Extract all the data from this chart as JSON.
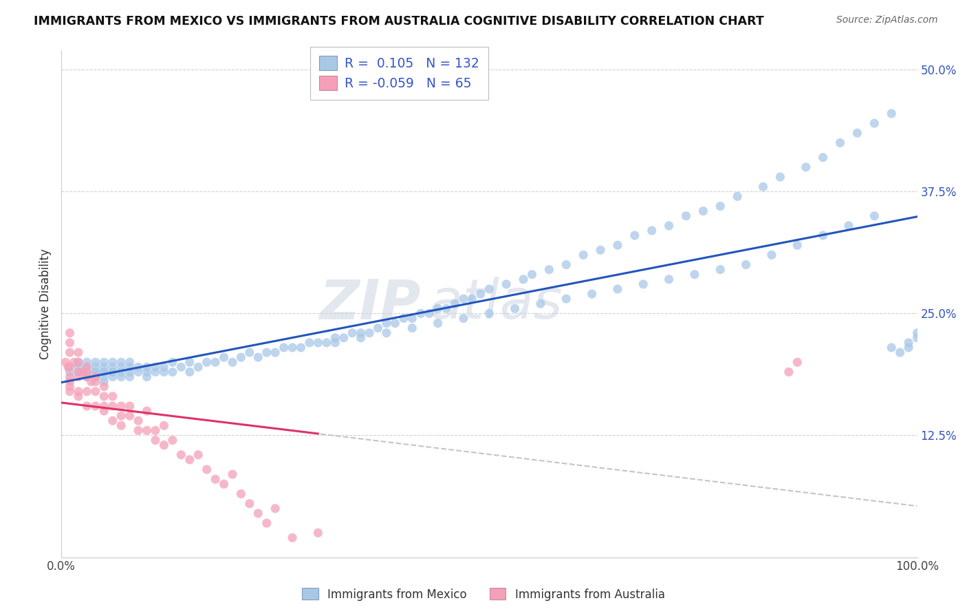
{
  "title": "IMMIGRANTS FROM MEXICO VS IMMIGRANTS FROM AUSTRALIA COGNITIVE DISABILITY CORRELATION CHART",
  "source": "Source: ZipAtlas.com",
  "ylabel": "Cognitive Disability",
  "xlim": [
    0.0,
    1.0
  ],
  "ylim": [
    0.0,
    0.52
  ],
  "mexico_R": 0.105,
  "mexico_N": 132,
  "australia_R": -0.059,
  "australia_N": 65,
  "blue_color": "#a8c8e8",
  "pink_color": "#f4a0b8",
  "blue_line_color": "#2255bb",
  "pink_line_color": "#dd3366",
  "dashed_line_color": "#c8c0d0",
  "legend_label_mexico": "Immigrants from Mexico",
  "legend_label_australia": "Immigrants from Australia",
  "watermark_zip": "ZIP",
  "watermark_atlas": "atlas",
  "mexico_x": [
    0.01,
    0.02,
    0.02,
    0.02,
    0.03,
    0.03,
    0.03,
    0.03,
    0.04,
    0.04,
    0.04,
    0.04,
    0.04,
    0.05,
    0.05,
    0.05,
    0.05,
    0.05,
    0.05,
    0.06,
    0.06,
    0.06,
    0.06,
    0.06,
    0.07,
    0.07,
    0.07,
    0.07,
    0.08,
    0.08,
    0.08,
    0.08,
    0.09,
    0.09,
    0.1,
    0.1,
    0.1,
    0.11,
    0.11,
    0.12,
    0.12,
    0.13,
    0.13,
    0.14,
    0.15,
    0.15,
    0.16,
    0.17,
    0.18,
    0.19,
    0.2,
    0.21,
    0.22,
    0.23,
    0.24,
    0.25,
    0.26,
    0.27,
    0.28,
    0.29,
    0.3,
    0.31,
    0.32,
    0.33,
    0.34,
    0.35,
    0.36,
    0.37,
    0.38,
    0.39,
    0.4,
    0.41,
    0.42,
    0.43,
    0.44,
    0.45,
    0.46,
    0.47,
    0.48,
    0.49,
    0.5,
    0.52,
    0.54,
    0.55,
    0.57,
    0.59,
    0.61,
    0.63,
    0.65,
    0.67,
    0.69,
    0.71,
    0.73,
    0.75,
    0.77,
    0.79,
    0.82,
    0.84,
    0.87,
    0.89,
    0.91,
    0.93,
    0.95,
    0.97,
    0.98,
    0.99,
    0.32,
    0.35,
    0.38,
    0.41,
    0.44,
    0.47,
    0.5,
    0.53,
    0.56,
    0.59,
    0.62,
    0.65,
    0.68,
    0.71,
    0.74,
    0.77,
    0.8,
    0.83,
    0.86,
    0.89,
    0.92,
    0.95,
    0.97,
    0.99,
    1.0,
    1.0
  ],
  "mexico_y": [
    0.19,
    0.19,
    0.195,
    0.2,
    0.185,
    0.19,
    0.195,
    0.2,
    0.185,
    0.19,
    0.19,
    0.195,
    0.2,
    0.18,
    0.185,
    0.19,
    0.19,
    0.195,
    0.2,
    0.185,
    0.19,
    0.19,
    0.195,
    0.2,
    0.185,
    0.19,
    0.195,
    0.2,
    0.185,
    0.19,
    0.195,
    0.2,
    0.19,
    0.195,
    0.185,
    0.19,
    0.195,
    0.19,
    0.195,
    0.19,
    0.195,
    0.19,
    0.2,
    0.195,
    0.19,
    0.2,
    0.195,
    0.2,
    0.2,
    0.205,
    0.2,
    0.205,
    0.21,
    0.205,
    0.21,
    0.21,
    0.215,
    0.215,
    0.215,
    0.22,
    0.22,
    0.22,
    0.225,
    0.225,
    0.23,
    0.23,
    0.23,
    0.235,
    0.24,
    0.24,
    0.245,
    0.245,
    0.25,
    0.25,
    0.255,
    0.255,
    0.26,
    0.265,
    0.265,
    0.27,
    0.275,
    0.28,
    0.285,
    0.29,
    0.295,
    0.3,
    0.31,
    0.315,
    0.32,
    0.33,
    0.335,
    0.34,
    0.35,
    0.355,
    0.36,
    0.37,
    0.38,
    0.39,
    0.4,
    0.41,
    0.425,
    0.435,
    0.445,
    0.455,
    0.21,
    0.215,
    0.22,
    0.225,
    0.23,
    0.235,
    0.24,
    0.245,
    0.25,
    0.255,
    0.26,
    0.265,
    0.27,
    0.275,
    0.28,
    0.285,
    0.29,
    0.295,
    0.3,
    0.31,
    0.32,
    0.33,
    0.34,
    0.35,
    0.215,
    0.22,
    0.225,
    0.23
  ],
  "australia_x": [
    0.005,
    0.008,
    0.01,
    0.01,
    0.01,
    0.01,
    0.01,
    0.01,
    0.01,
    0.01,
    0.015,
    0.02,
    0.02,
    0.02,
    0.02,
    0.02,
    0.02,
    0.025,
    0.03,
    0.03,
    0.03,
    0.03,
    0.03,
    0.035,
    0.04,
    0.04,
    0.04,
    0.04,
    0.05,
    0.05,
    0.05,
    0.05,
    0.06,
    0.06,
    0.06,
    0.07,
    0.07,
    0.07,
    0.08,
    0.08,
    0.09,
    0.09,
    0.1,
    0.1,
    0.11,
    0.11,
    0.12,
    0.12,
    0.13,
    0.14,
    0.15,
    0.16,
    0.17,
    0.18,
    0.19,
    0.2,
    0.21,
    0.22,
    0.23,
    0.24,
    0.25,
    0.27,
    0.3,
    0.85,
    0.86
  ],
  "australia_y": [
    0.2,
    0.195,
    0.21,
    0.22,
    0.23,
    0.185,
    0.195,
    0.18,
    0.17,
    0.175,
    0.2,
    0.185,
    0.19,
    0.2,
    0.21,
    0.17,
    0.165,
    0.19,
    0.185,
    0.19,
    0.195,
    0.17,
    0.155,
    0.18,
    0.185,
    0.17,
    0.18,
    0.155,
    0.175,
    0.165,
    0.155,
    0.15,
    0.165,
    0.155,
    0.14,
    0.155,
    0.145,
    0.135,
    0.155,
    0.145,
    0.14,
    0.13,
    0.15,
    0.13,
    0.13,
    0.12,
    0.135,
    0.115,
    0.12,
    0.105,
    0.1,
    0.105,
    0.09,
    0.08,
    0.075,
    0.085,
    0.065,
    0.055,
    0.045,
    0.035,
    0.05,
    0.02,
    0.025,
    0.19,
    0.2
  ]
}
